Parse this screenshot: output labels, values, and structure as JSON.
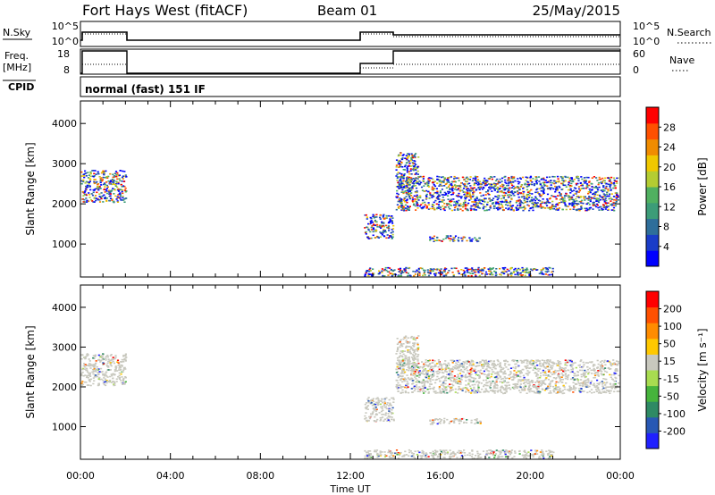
{
  "header": {
    "title": "Fort Hays West (fitACF)",
    "beam": "Beam 01",
    "date": "25/May/2015"
  },
  "strips": {
    "nsky_label": "N.Sky",
    "nsearch_label": "N.Search",
    "nsky_ticks": [
      "10^5",
      "10^0"
    ],
    "nsearch_ticks": [
      "10^5",
      "10^0"
    ],
    "freq_label_1": "Freq.",
    "freq_label_2": "[MHz]",
    "freq_ticks": [
      "18",
      "8"
    ],
    "nave_label": "Nave",
    "nave_ticks": [
      "60",
      "0"
    ],
    "cpid_label": "CPID",
    "cpid_text": "normal (fast) 151 IF"
  },
  "chart_data": [
    {
      "type": "heatmap",
      "name": "power-panel",
      "ylabel": "Slant Range [km]",
      "xlabel": "Time UT",
      "xlim": [
        0,
        24
      ],
      "ylim": [
        180,
        4560
      ],
      "x_ticks": [
        "00:00",
        "04:00",
        "08:00",
        "12:00",
        "16:00",
        "20:00",
        "00:00"
      ],
      "y_ticks": [
        1000,
        2000,
        3000,
        4000
      ],
      "colorbar": {
        "label": "Power [dB]",
        "ticks": [
          "28",
          "24",
          "20",
          "16",
          "12",
          "8",
          "4"
        ],
        "colors": [
          "#0000ff",
          "#1a3cc8",
          "#2e6e9a",
          "#3c9c78",
          "#50b060",
          "#b4cc32",
          "#f0c800",
          "#f08c00",
          "#ff5000",
          "#ff0000"
        ]
      },
      "echo_regions": [
        {
          "t0": 0.0,
          "t1": 2.0,
          "r0": 2050,
          "r1": 2850
        },
        {
          "t0": 12.6,
          "t1": 13.9,
          "r0": 1150,
          "r1": 1750
        },
        {
          "t0": 14.0,
          "t1": 23.9,
          "r0": 1850,
          "r1": 2700
        },
        {
          "t0": 14.0,
          "t1": 15.0,
          "r0": 2400,
          "r1": 3300
        },
        {
          "t0": 15.5,
          "t1": 17.8,
          "r0": 1080,
          "r1": 1220
        },
        {
          "t0": 12.6,
          "t1": 21.0,
          "r0": 220,
          "r1": 430
        }
      ]
    },
    {
      "type": "heatmap",
      "name": "velocity-panel",
      "ylabel": "Slant Range [km]",
      "xlabel": "Time UT",
      "xlim": [
        0,
        24
      ],
      "ylim": [
        180,
        4560
      ],
      "x_ticks": [
        "00:00",
        "04:00",
        "08:00",
        "12:00",
        "16:00",
        "20:00",
        "00:00"
      ],
      "y_ticks": [
        1000,
        2000,
        3000,
        4000
      ],
      "colorbar": {
        "label": "Velocity [m s⁻¹]",
        "ticks": [
          "200",
          "100",
          "50",
          "15",
          "-15",
          "-50",
          "-100",
          "-200"
        ],
        "colors": [
          "#2020ff",
          "#2858b4",
          "#2e8a64",
          "#46b43c",
          "#a8dc50",
          "#c8c8be",
          "#ffc800",
          "#ff8c00",
          "#ff5000",
          "#ff0000"
        ]
      },
      "echo_regions": [
        {
          "t0": 0.0,
          "t1": 2.0,
          "r0": 2050,
          "r1": 2850
        },
        {
          "t0": 12.6,
          "t1": 13.9,
          "r0": 1150,
          "r1": 1750
        },
        {
          "t0": 14.0,
          "t1": 23.9,
          "r0": 1850,
          "r1": 2700
        },
        {
          "t0": 14.0,
          "t1": 15.0,
          "r0": 2400,
          "r1": 3300
        },
        {
          "t0": 15.5,
          "t1": 17.8,
          "r0": 1080,
          "r1": 1220
        },
        {
          "t0": 12.6,
          "t1": 21.0,
          "r0": 220,
          "r1": 430
        }
      ]
    }
  ]
}
